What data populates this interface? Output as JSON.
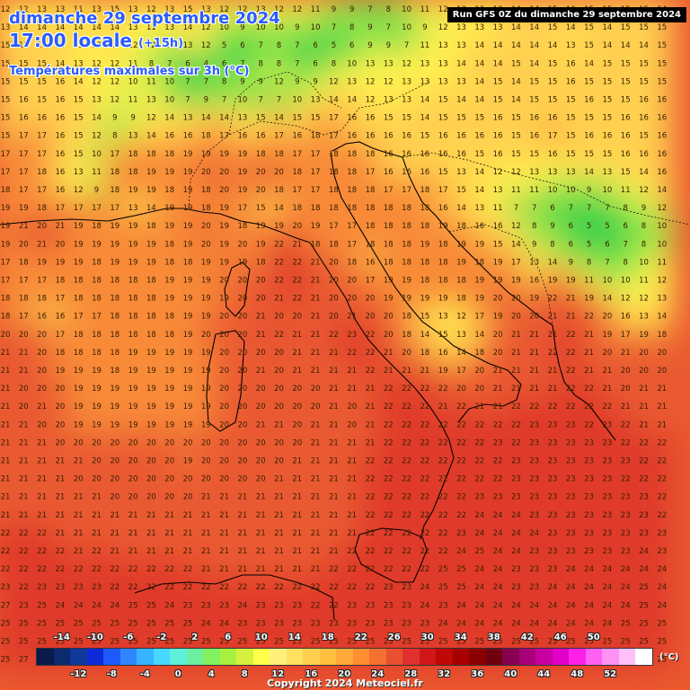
{
  "header": {
    "date": "dimanche 29 septembre 2024",
    "time": "17:00 locale",
    "offset": "(+15h)",
    "variable": "Températures maximales sur 3h (°C)",
    "run": "Run GFS 0Z du dimanche 29 septembre 2024"
  },
  "copyright": "Copyright 2024 Meteociel.fr",
  "legend": {
    "unit": "(°C)",
    "top_labels": [
      "-14",
      "-10",
      "-6",
      "-2",
      "2",
      "6",
      "10",
      "14",
      "18",
      "22",
      "26",
      "30",
      "34",
      "38",
      "42",
      "46",
      "50"
    ],
    "bottom_labels": [
      "-12",
      "-8",
      "-4",
      "0",
      "4",
      "8",
      "12",
      "16",
      "20",
      "24",
      "28",
      "32",
      "36",
      "40",
      "44",
      "48",
      "52"
    ],
    "colors": [
      "#0a1a4a",
      "#0d2a6e",
      "#10389a",
      "#0c2bd6",
      "#1e58ff",
      "#2f86ff",
      "#37b4ff",
      "#46d8ff",
      "#5ef0d8",
      "#6cf0a0",
      "#83f060",
      "#a8f040",
      "#d6f040",
      "#ffff4a",
      "#fff07a",
      "#ffe060",
      "#ffd050",
      "#ffc040",
      "#ffaa3a",
      "#ff8f30",
      "#f57030",
      "#e85030",
      "#e03030",
      "#d01818",
      "#c00808",
      "#a80000",
      "#8a0000",
      "#700010",
      "#880050",
      "#a80078",
      "#c800a0",
      "#e000c8",
      "#ff20e8",
      "#ff60f0",
      "#ff90f4",
      "#ffc0f8",
      "#ffffff"
    ]
  },
  "map": {
    "grid_origin_value_note": "",
    "temperature_rows": [
      "12 12 13 13 11 13 15 13 12 13 15 13 12 12 13 12 12 11 9 9 7 8 10 11 12 13 13 13 14 14 15 16 15 15 15 15 14",
      "13 14 14 14 14 14 14 13 11 13 14 12 10 9 10 10 9 10 7 8 9 7 10 9 12 13 13 13 14 14 15 14 15 14 15 15 15",
      "15 15 14 14 13 13 14 12 12 10 13 12 5 6 7 8 7 6 5 6 9 9 7 11 13 13 14 14 14 14 14 13 15 14 14 14 15",
      "15 15 15 14 13 12 12 11 8 7 6 4 6 7 8 8 7 6 8 10 13 13 12 13 13 14 14 14 15 14 15 16 14 15 15 15 15",
      "15 15 15 16 14 12 12 10 11 10 7 7 8 9 9 12 9 9 12 13 12 12 13 13 13 13 14 15 14 15 15 16 15 15 15 15 15",
      "15 16 15 16 15 13 12 11 13 10 7 9 7 10 7 7 10 13 14 14 12 13 13 14 15 14 14 15 14 15 15 15 16 15 15 16 16",
      "15 16 16 16 15 14 9 9 12 14 13 14 14 13 15 14 15 15 17 16 16 15 15 14 15 15 15 16 15 16 16 15 15 15 16 16 16",
      "15 17 17 16 15 12 8 13 14 16 16 18 17 16 16 17 16 18 17 16 16 16 16 15 16 16 16 16 15 16 17 15 16 16 16 15 16",
      "17 17 17 16 15 10 17 18 18 18 19 19 19 19 18 18 17 17 18 18 18 16 16 16 16 16 15 16 15 15 16 15 15 15 16 16 16",
      "17 17 18 16 13 11 18 18 19 19 19 20 20 19 20 20 18 17 18 18 17 16 16 16 15 13 14 12 12 13 13 13 14 13 15 14 16",
      "18 17 17 16 12 9 18 19 19 18 19 18 20 19 20 18 17 17 18 18 18 17 17 18 17 15 14 13 11 11 10 10 9 10 11 12 14",
      "19 19 18 17 17 17 17 13 14 19 19 18 19 17 15 14 18 18 18 18 18 18 18 18 16 14 13 11 7 7 6 7 7 7 8 9 12",
      "19 21 20 21 19 18 19 19 18 19 19 20 19 18 19 19 20 19 17 17 18 18 18 18 19 18 16 16 12 8 9 6 5 5 6 8 10",
      "19 20 21 20 19 19 19 19 19 18 19 20 19 20 19 22 21 18 18 17 18 18 18 19 18 19 19 15 14 9 8 6 5 6 7 8 10",
      "17 18 19 19 19 18 19 19 19 18 18 19 19 19 18 22 22 21 20 18 16 18 18 18 18 19 18 19 17 13 14 9 8 7 8 10 11",
      "17 17 17 18 18 18 18 18 18 19 19 19 20 20 20 22 22 21 20 20 17 19 19 18 18 18 19 19 19 16 19 19 11 10 10 11 12",
      "18 18 18 17 18 18 18 18 18 19 19 19 19 20 20 21 22 21 20 20 20 19 19 19 19 18 19 20 20 19 22 21 19 14 12 12 13",
      "18 17 16 16 17 17 18 18 18 18 19 19 20 20 21 20 20 21 20 21 20 20 18 15 13 12 17 19 20 20 21 21 22 20 16 13 14",
      "20 20 20 17 18 18 18 18 18 18 19 20 20 20 21 22 21 21 22 23 22 20 18 14 15 13 14 20 21 21 21 22 21 19 17 19 18",
      "21 21 20 18 18 18 18 19 19 19 19 19 20 20 20 20 21 21 21 22 22 21 20 18 16 14 18 20 21 21 22 22 21 20 21 20 20",
      "21 21 20 19 19 19 18 19 19 19 19 19 20 20 21 20 21 21 21 21 22 21 21 21 19 17 20 21 21 21 21 22 21 21 20 20 20",
      "21 20 20 20 19 19 19 19 19 19 19 19 20 20 20 20 20 20 21 21 21 22 22 22 22 20 20 21 21 21 21 22 22 21 20 21 21",
      "21 20 21 20 19 19 19 19 19 19 19 19 20 20 20 20 20 20 21 20 21 22 22 22 21 22 21 21 22 22 22 22 22 22 21 21 21",
      "21 21 20 20 19 19 19 19 19 19 19 19 20 20 21 21 20 21 21 20 21 22 22 22 22 22 22 22 22 23 23 23 22 23 22 21 21",
      "21 21 21 20 20 20 20 20 20 20 20 20 20 20 20 20 20 21 21 21 21 22 22 22 22 22 22 23 22 23 23 23 23 23 22 22 22",
      "21 21 21 21 21 20 20 20 20 20 19 20 20 20 20 20 21 21 21 21 22 22 22 22 22 22 22 22 23 23 23 23 23 23 23 22 22",
      "21 21 21 21 20 20 20 20 20 20 20 20 20 20 20 21 21 21 21 21 22 22 22 22 22 22 22 22 23 23 23 23 23 23 22 22 22",
      "21 21 21 21 21 21 20 20 20 20 20 21 21 21 21 21 21 21 21 21 22 22 22 22 22 22 23 23 23 23 23 23 23 23 23 23 22",
      "21 21 21 21 21 21 21 21 21 21 21 21 21 21 21 21 21 21 21 21 22 22 22 22 22 22 24 24 24 23 23 23 23 23 23 23 22",
      "22 22 22 21 21 21 21 21 21 21 21 21 21 21 21 21 21 21 21 21 22 22 22 22 22 23 24 24 24 24 23 23 23 23 23 23 23",
      "22 22 22 22 21 22 21 21 21 21 21 21 21 21 21 21 21 21 21 22 22 22 22 22 22 24 25 24 24 23 23 23 23 23 23 24 23",
      "22 22 22 22 22 22 22 22 22 22 22 21 21 21 21 21 21 21 22 22 22 22 22 22 25 25 24 24 23 23 23 24 24 24 24 24 24",
      "23 22 23 23 23 23 22 22 22 22 22 22 22 22 22 22 22 22 22 22 22 23 23 24 25 25 24 24 23 23 24 24 24 24 24 25 24",
      "27 23 25 24 24 24 24 25 25 24 23 23 23 24 23 23 23 22 22 23 23 23 23 24 23 24 24 24 24 24 24 24 24 24 24 25 24",
      "25 25 25 25 25 25 25 25 25 25 25 24 24 23 23 23 23 23 23 23 23 23 23 23 24 24 24 24 24 24 24 24 24 24 25 25 25",
      "25 25 25 25 25 25 25 25 25 25 25 25 25 25 25 25 25 25 25 25 25 25 25 25 25 25 25 25 25 25 25 25 25 25 25 25 25",
      "25 27 22 23 26 27 27 24 24 24 23 23 23 23 24 24 24 24 25 25 25 25 25 25 25 25 25 25 25 25 25 25 25 25 25 25 25"
    ],
    "colors": {
      "cool_green": "#3cd24a",
      "light_green": "#9be84a",
      "yellow": "#fff050",
      "light_orange": "#ffd050",
      "orange": "#f88a38",
      "red_orange": "#ea5a30",
      "red": "#e03a2a",
      "coast": "#000000",
      "grid_text": "#3a2000"
    }
  }
}
